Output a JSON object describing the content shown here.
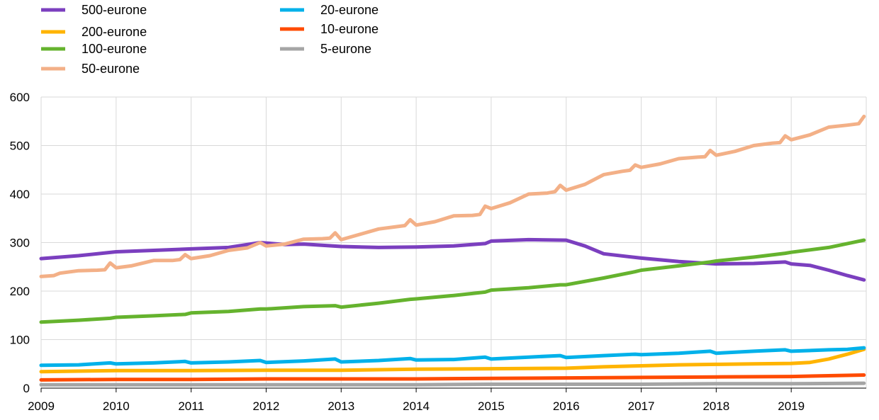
{
  "chart_data": {
    "type": "line",
    "title": "",
    "xlabel": "",
    "ylabel": "",
    "ylim": [
      0,
      600
    ],
    "xlim": [
      2009,
      2020
    ],
    "y_ticks": [
      "0",
      "100",
      "200",
      "300",
      "400",
      "500",
      "600"
    ],
    "x_ticks": [
      "2009",
      "2010",
      "2011",
      "2012",
      "2013",
      "2014",
      "2015",
      "2016",
      "2017",
      "2018",
      "2019"
    ],
    "grid": "horizontal and vertical",
    "legend_position": "top-left, two columns",
    "series": [
      {
        "name": "500-eurone",
        "color": "#7B3FBF",
        "points": [
          [
            2009,
            267
          ],
          [
            2009.5,
            273
          ],
          [
            2010,
            281
          ],
          [
            2010.5,
            284
          ],
          [
            2011,
            287
          ],
          [
            2011.5,
            290
          ],
          [
            2011.92,
            300
          ],
          [
            2012.25,
            296
          ],
          [
            2012.5,
            297
          ],
          [
            2013,
            292
          ],
          [
            2013.5,
            290
          ],
          [
            2014,
            291
          ],
          [
            2014.5,
            293
          ],
          [
            2014.92,
            298
          ],
          [
            2015,
            303
          ],
          [
            2015.5,
            306
          ],
          [
            2016,
            305
          ],
          [
            2016.25,
            293
          ],
          [
            2016.5,
            277
          ],
          [
            2017,
            268
          ],
          [
            2017.5,
            261
          ],
          [
            2018,
            256
          ],
          [
            2018.5,
            257
          ],
          [
            2018.92,
            260
          ],
          [
            2019,
            256
          ],
          [
            2019.25,
            253
          ],
          [
            2019.5,
            243
          ],
          [
            2019.75,
            232
          ],
          [
            2019.97,
            223
          ]
        ]
      },
      {
        "name": "200-eurone",
        "color": "#FFB400",
        "points": [
          [
            2009,
            34
          ],
          [
            2010,
            36
          ],
          [
            2011,
            36
          ],
          [
            2012,
            37
          ],
          [
            2013,
            37
          ],
          [
            2014,
            39
          ],
          [
            2015,
            40
          ],
          [
            2016,
            41
          ],
          [
            2016.5,
            44
          ],
          [
            2017,
            46
          ],
          [
            2017.5,
            48
          ],
          [
            2018,
            49
          ],
          [
            2018.5,
            50
          ],
          [
            2019,
            51
          ],
          [
            2019.25,
            53
          ],
          [
            2019.5,
            60
          ],
          [
            2019.75,
            70
          ],
          [
            2019.97,
            80
          ]
        ]
      },
      {
        "name": "100-eurone",
        "color": "#65B32E",
        "points": [
          [
            2009,
            136
          ],
          [
            2009.5,
            140
          ],
          [
            2009.92,
            144
          ],
          [
            2010,
            146
          ],
          [
            2010.5,
            149
          ],
          [
            2010.92,
            152
          ],
          [
            2011,
            155
          ],
          [
            2011.5,
            158
          ],
          [
            2011.92,
            163
          ],
          [
            2012,
            163
          ],
          [
            2012.5,
            168
          ],
          [
            2012.92,
            170
          ],
          [
            2013,
            167
          ],
          [
            2013.5,
            175
          ],
          [
            2013.92,
            183
          ],
          [
            2014,
            184
          ],
          [
            2014.5,
            191
          ],
          [
            2014.92,
            198
          ],
          [
            2015,
            202
          ],
          [
            2015.5,
            207
          ],
          [
            2015.92,
            213
          ],
          [
            2016,
            213
          ],
          [
            2016.5,
            227
          ],
          [
            2016.92,
            240
          ],
          [
            2017,
            243
          ],
          [
            2017.5,
            252
          ],
          [
            2017.92,
            260
          ],
          [
            2018,
            262
          ],
          [
            2018.5,
            270
          ],
          [
            2018.92,
            278
          ],
          [
            2019,
            280
          ],
          [
            2019.5,
            290
          ],
          [
            2019.97,
            305
          ]
        ]
      },
      {
        "name": "50-eurone",
        "color": "#F3B087",
        "points": [
          [
            2009,
            230
          ],
          [
            2009.17,
            232
          ],
          [
            2009.25,
            237
          ],
          [
            2009.5,
            242
          ],
          [
            2009.75,
            243
          ],
          [
            2009.85,
            244
          ],
          [
            2009.92,
            258
          ],
          [
            2010,
            248
          ],
          [
            2010.2,
            252
          ],
          [
            2010.5,
            263
          ],
          [
            2010.75,
            263
          ],
          [
            2010.85,
            265
          ],
          [
            2010.92,
            275
          ],
          [
            2011,
            267
          ],
          [
            2011.25,
            273
          ],
          [
            2011.5,
            284
          ],
          [
            2011.75,
            289
          ],
          [
            2011.92,
            300
          ],
          [
            2012,
            293
          ],
          [
            2012.25,
            297
          ],
          [
            2012.5,
            307
          ],
          [
            2012.75,
            308
          ],
          [
            2012.85,
            309
          ],
          [
            2012.92,
            320
          ],
          [
            2013,
            306
          ],
          [
            2013.25,
            317
          ],
          [
            2013.5,
            328
          ],
          [
            2013.75,
            333
          ],
          [
            2013.85,
            335
          ],
          [
            2013.92,
            347
          ],
          [
            2014,
            336
          ],
          [
            2014.25,
            343
          ],
          [
            2014.5,
            355
          ],
          [
            2014.75,
            356
          ],
          [
            2014.85,
            358
          ],
          [
            2014.92,
            375
          ],
          [
            2015,
            370
          ],
          [
            2015.25,
            382
          ],
          [
            2015.5,
            400
          ],
          [
            2015.75,
            402
          ],
          [
            2015.85,
            405
          ],
          [
            2015.92,
            418
          ],
          [
            2016,
            408
          ],
          [
            2016.25,
            420
          ],
          [
            2016.5,
            440
          ],
          [
            2016.75,
            447
          ],
          [
            2016.85,
            449
          ],
          [
            2016.92,
            460
          ],
          [
            2017,
            455
          ],
          [
            2017.25,
            462
          ],
          [
            2017.5,
            473
          ],
          [
            2017.75,
            476
          ],
          [
            2017.85,
            477
          ],
          [
            2017.92,
            490
          ],
          [
            2018,
            480
          ],
          [
            2018.25,
            488
          ],
          [
            2018.5,
            500
          ],
          [
            2018.75,
            505
          ],
          [
            2018.85,
            506
          ],
          [
            2018.92,
            520
          ],
          [
            2019,
            512
          ],
          [
            2019.25,
            522
          ],
          [
            2019.5,
            538
          ],
          [
            2019.75,
            542
          ],
          [
            2019.9,
            545
          ],
          [
            2019.97,
            560
          ]
        ]
      },
      {
        "name": "20-eurone",
        "color": "#00B1EA",
        "points": [
          [
            2009,
            47
          ],
          [
            2009.5,
            48
          ],
          [
            2009.92,
            52
          ],
          [
            2010,
            50
          ],
          [
            2010.5,
            52
          ],
          [
            2010.92,
            55
          ],
          [
            2011,
            52
          ],
          [
            2011.5,
            54
          ],
          [
            2011.92,
            57
          ],
          [
            2012,
            53
          ],
          [
            2012.5,
            56
          ],
          [
            2012.92,
            60
          ],
          [
            2013,
            54
          ],
          [
            2013.5,
            57
          ],
          [
            2013.92,
            61
          ],
          [
            2014,
            58
          ],
          [
            2014.5,
            59
          ],
          [
            2014.92,
            64
          ],
          [
            2015,
            60
          ],
          [
            2015.5,
            64
          ],
          [
            2015.92,
            67
          ],
          [
            2016,
            63
          ],
          [
            2016.5,
            67
          ],
          [
            2016.92,
            70
          ],
          [
            2017,
            69
          ],
          [
            2017.5,
            72
          ],
          [
            2017.92,
            76
          ],
          [
            2018,
            72
          ],
          [
            2018.5,
            76
          ],
          [
            2018.92,
            79
          ],
          [
            2019,
            76
          ],
          [
            2019.5,
            79
          ],
          [
            2019.75,
            80
          ],
          [
            2019.97,
            83
          ]
        ]
      },
      {
        "name": "10-eurone",
        "color": "#FF4B00",
        "points": [
          [
            2009,
            17
          ],
          [
            2010,
            18
          ],
          [
            2011,
            18
          ],
          [
            2012,
            19
          ],
          [
            2013,
            19
          ],
          [
            2014,
            19
          ],
          [
            2015,
            20
          ],
          [
            2016,
            21
          ],
          [
            2017,
            22
          ],
          [
            2018,
            23
          ],
          [
            2019,
            24
          ],
          [
            2019.97,
            27
          ]
        ]
      },
      {
        "name": "5-eurone",
        "color": "#A5A5A5",
        "points": [
          [
            2009,
            7
          ],
          [
            2010,
            7
          ],
          [
            2011,
            7
          ],
          [
            2012,
            7
          ],
          [
            2013,
            7
          ],
          [
            2014,
            7
          ],
          [
            2015,
            8
          ],
          [
            2016,
            8
          ],
          [
            2017,
            8
          ],
          [
            2018,
            9
          ],
          [
            2019,
            9
          ],
          [
            2019.97,
            10
          ]
        ]
      }
    ]
  }
}
